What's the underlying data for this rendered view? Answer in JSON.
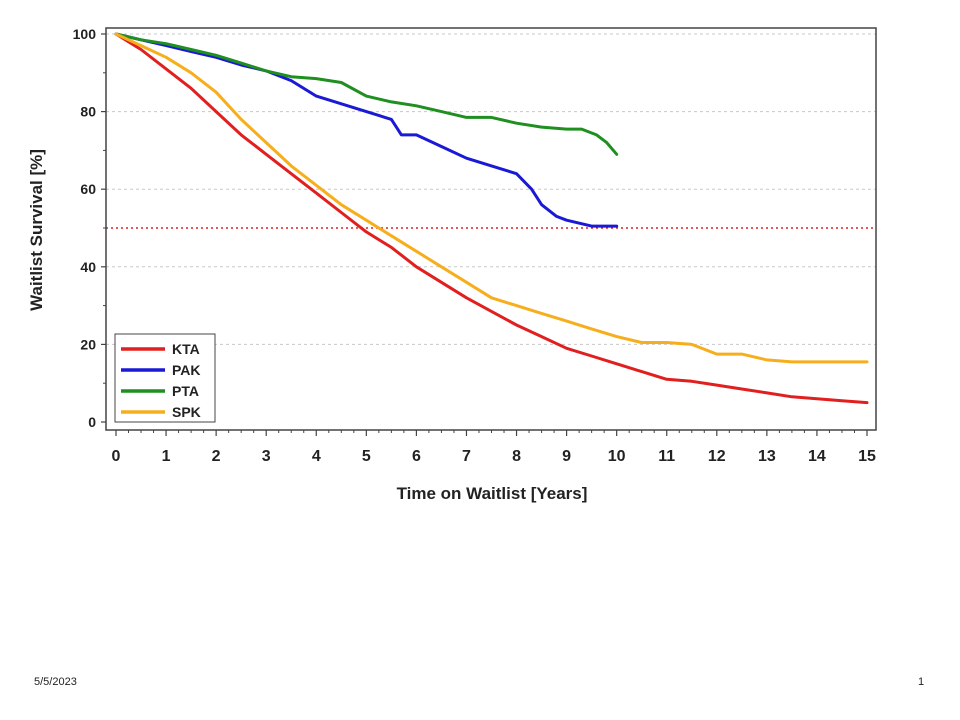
{
  "slide": {
    "date": "5/5/2023",
    "page_number": "1"
  },
  "chart_data": {
    "type": "line",
    "title": "",
    "xlabel": "Time on Waitlist [Years]",
    "ylabel": "Waitlist Survival [%]",
    "xlim": [
      0,
      15
    ],
    "ylim": [
      0,
      100
    ],
    "xticks": [
      0,
      1,
      2,
      3,
      4,
      5,
      6,
      7,
      8,
      9,
      10,
      11,
      12,
      13,
      14,
      15
    ],
    "yticks": [
      0,
      20,
      40,
      60,
      80,
      100
    ],
    "grid": "horizontal dotted",
    "reference_line": {
      "y": 50,
      "color": "#e21f1f",
      "style": "dotted"
    },
    "legend_position": "bottom-left",
    "series": [
      {
        "name": "KTA",
        "color": "#e21f1f",
        "x": [
          0,
          0.5,
          1,
          1.5,
          2,
          2.5,
          3,
          3.5,
          4,
          4.5,
          5,
          5.5,
          6,
          6.5,
          7,
          7.5,
          8,
          8.5,
          9,
          9.5,
          10,
          10.5,
          11,
          11.5,
          12,
          12.5,
          13,
          13.5,
          14,
          14.5,
          15
        ],
        "y": [
          100,
          96,
          91,
          86,
          80,
          74,
          69,
          64,
          59,
          54,
          49,
          45,
          40,
          36,
          32,
          28.5,
          25,
          22,
          19,
          17,
          15,
          13,
          11,
          10.5,
          9.5,
          8.5,
          7.5,
          6.5,
          6,
          5.5,
          5
        ]
      },
      {
        "name": "PAK",
        "color": "#1a1ad6",
        "x": [
          0,
          0.5,
          1,
          1.5,
          2,
          2.5,
          3,
          3.5,
          4,
          4.5,
          5,
          5.5,
          5.7,
          6,
          6.5,
          7,
          7.5,
          8,
          8.3,
          8.5,
          8.8,
          9,
          9.5,
          10
        ],
        "y": [
          100,
          98.5,
          97,
          95.5,
          94,
          92,
          90.5,
          88,
          84,
          82,
          80,
          78,
          74,
          74,
          71,
          68,
          66,
          64,
          60,
          56,
          53,
          52,
          50.5,
          50.5
        ]
      },
      {
        "name": "PTA",
        "color": "#1f8f1f",
        "x": [
          0,
          0.5,
          1,
          1.5,
          2,
          2.5,
          3,
          3.5,
          4,
          4.5,
          5,
          5.5,
          6,
          6.5,
          7,
          7.5,
          8,
          8.5,
          9,
          9.3,
          9.6,
          9.8,
          10
        ],
        "y": [
          100,
          98.5,
          97.5,
          96,
          94.5,
          92.5,
          90.5,
          89,
          88.5,
          87.5,
          84,
          82.5,
          81.5,
          80,
          78.5,
          78.5,
          77,
          76,
          75.5,
          75.5,
          74,
          72,
          69
        ]
      },
      {
        "name": "SPK",
        "color": "#f7ae1c",
        "x": [
          0,
          0.5,
          1,
          1.5,
          2,
          2.5,
          3,
          3.5,
          4,
          4.5,
          5,
          5.5,
          6,
          6.5,
          7,
          7.5,
          8,
          8.5,
          9,
          9.5,
          10,
          10.5,
          11,
          11.5,
          12,
          12.5,
          13,
          13.5,
          14,
          14.5,
          15
        ],
        "y": [
          100,
          97,
          94,
          90,
          85,
          78,
          72,
          66,
          61,
          56,
          52,
          48,
          44,
          40,
          36,
          32,
          30,
          28,
          26,
          24,
          22,
          20.5,
          20.5,
          20,
          17.5,
          17.5,
          16,
          15.5,
          15.5,
          15.5,
          15.5
        ]
      }
    ]
  }
}
